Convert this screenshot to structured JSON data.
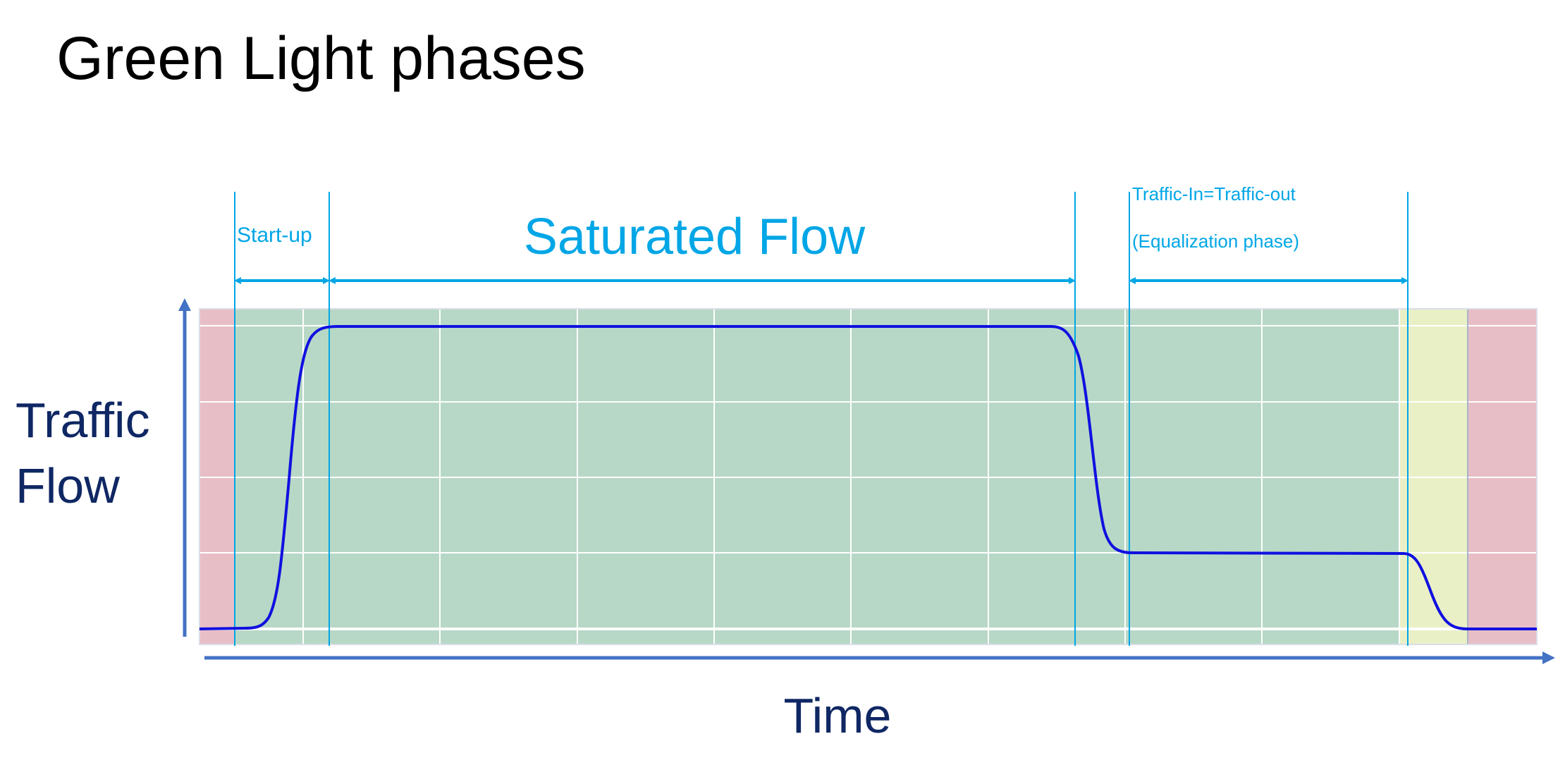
{
  "title": "Green Light phases",
  "labels": {
    "startup": "Start-up",
    "saturated": "Saturated Flow",
    "equal_line1": "Traffic-In=Traffic-out",
    "equal_line2": "(Equalization phase)",
    "y_axis_line1": "Traffic",
    "y_axis_line2": "Flow",
    "x_axis": "Time"
  },
  "colors": {
    "red_phase": "#E8BEC6",
    "green_phase": "#B7D8C6",
    "yellow_phase": "#EAF0C6",
    "flow_curve": "#1010E0",
    "annotation": "#00A6E6",
    "axis": "#4472C4",
    "axis_text": "#0F2763",
    "grid": "#FFFFFF"
  }
}
